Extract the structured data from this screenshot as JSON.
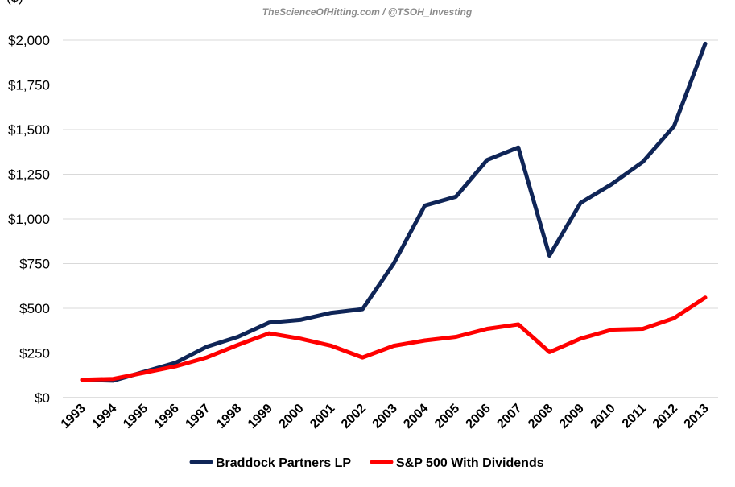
{
  "watermark": "TheScienceOfHitting.com / @TSOH_Investing",
  "top_clip_text": "($)",
  "chart_data": {
    "type": "line",
    "title": "",
    "xlabel": "",
    "ylabel": "",
    "x": [
      "1993",
      "1994",
      "1995",
      "1996",
      "1997",
      "1998",
      "1999",
      "2000",
      "2001",
      "2002",
      "2003",
      "2004",
      "2005",
      "2006",
      "2007",
      "2008",
      "2009",
      "2010",
      "2011",
      "2012",
      "2013"
    ],
    "ylim": [
      0,
      2000
    ],
    "y_ticks": [
      0,
      250,
      500,
      750,
      1000,
      1250,
      1500,
      1750,
      2000
    ],
    "y_tick_labels": [
      "$0",
      "$250",
      "$500",
      "$750",
      "$1,000",
      "$1,250",
      "$1,500",
      "$1,750",
      "$2,000"
    ],
    "grid": "horizontal",
    "legend_position": "bottom",
    "series": [
      {
        "name": "Braddock Partners LP",
        "color": "#0f2557",
        "values": [
          100,
          95,
          145,
          195,
          285,
          340,
          420,
          435,
          475,
          495,
          750,
          1075,
          1125,
          1330,
          1400,
          795,
          1090,
          1195,
          1320,
          1520,
          1980
        ]
      },
      {
        "name": "S&P 500 With Dividends",
        "color": "#ff0000",
        "values": [
          100,
          105,
          140,
          175,
          225,
          295,
          360,
          330,
          290,
          225,
          290,
          320,
          340,
          385,
          410,
          255,
          330,
          380,
          385,
          445,
          560
        ]
      }
    ]
  }
}
